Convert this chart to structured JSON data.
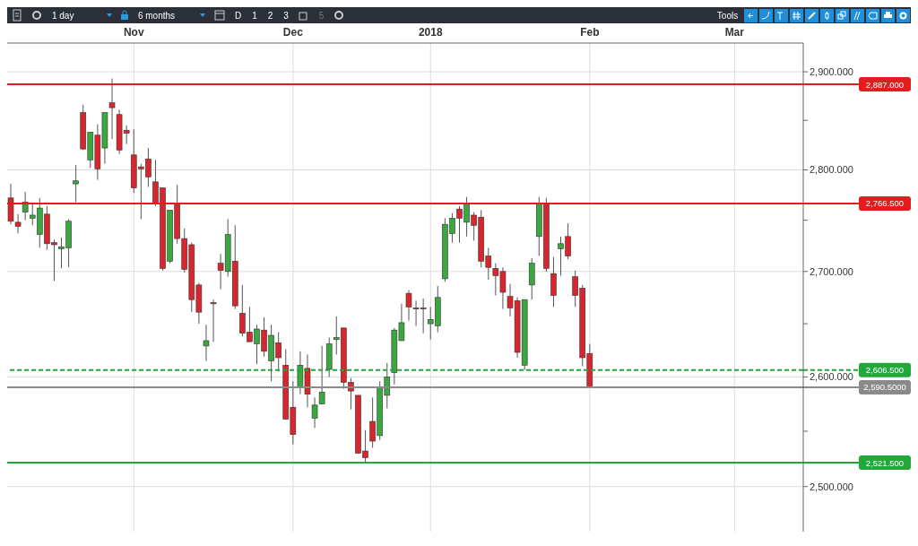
{
  "chart_data": {
    "type": "candlestick",
    "categories": [
      null,
      null,
      null,
      null,
      null,
      null,
      null,
      null,
      null,
      null,
      null,
      null,
      null,
      null,
      null,
      null,
      null,
      "Nov",
      null,
      null,
      null,
      null,
      null,
      null,
      null,
      null,
      null,
      null,
      null,
      null,
      null,
      null,
      null,
      null,
      null,
      null,
      null,
      null,
      null,
      "Dec",
      null,
      null,
      null,
      null,
      null,
      null,
      null,
      null,
      null,
      null,
      null,
      null,
      null,
      null,
      null,
      null,
      null,
      null,
      "2018",
      null,
      null,
      null,
      null,
      null,
      null,
      null,
      null,
      null,
      null,
      null,
      null,
      null,
      null,
      null,
      null,
      null,
      null,
      null,
      null,
      null,
      "Feb",
      null,
      null,
      null,
      null,
      null,
      null,
      null,
      null,
      null,
      null,
      null,
      null,
      null,
      null,
      null,
      null,
      null,
      null,
      null,
      "Mar",
      null,
      null,
      null,
      null,
      null,
      null,
      null,
      null,
      null
    ],
    "ohlc": [
      [
        2772,
        2786,
        2746,
        2749
      ],
      [
        2748,
        2756,
        2737,
        2744
      ],
      [
        2758,
        2778,
        2750,
        2768
      ],
      [
        2752,
        2767,
        2745,
        2755
      ],
      [
        2736,
        2772,
        2723,
        2762
      ],
      [
        2756,
        2764,
        2721,
        2727
      ],
      [
        2728,
        2731,
        2691,
        2726
      ],
      [
        2722,
        2733,
        2703,
        2724
      ],
      [
        2723,
        2751,
        2704,
        2749
      ],
      [
        2786,
        2805,
        2768,
        2789
      ],
      [
        2858,
        2866,
        2820,
        2821
      ],
      [
        2810,
        2838,
        2802,
        2838
      ],
      [
        2835,
        2846,
        2790,
        2801
      ],
      [
        2822,
        2858,
        2806,
        2858
      ],
      [
        2868,
        2893,
        2831,
        2863
      ],
      [
        2856,
        2861,
        2816,
        2820
      ],
      [
        2840,
        2845,
        2826,
        2837
      ],
      [
        2815,
        2841,
        2777,
        2782
      ],
      [
        2803,
        2806,
        2751,
        2801
      ],
      [
        2811,
        2822,
        2783,
        2793
      ],
      [
        2788,
        2810,
        2764,
        2767
      ],
      [
        2782,
        2782,
        2701,
        2703
      ],
      [
        2710,
        2760,
        2708,
        2760
      ],
      [
        2767,
        2785,
        2727,
        2732
      ],
      [
        2732,
        2742,
        2699,
        2702
      ],
      [
        2726,
        2728,
        2661,
        2673
      ],
      [
        2687,
        2689,
        2650,
        2661
      ],
      [
        2629,
        2649,
        2615,
        2634
      ],
      [
        2670,
        2673,
        2633,
        2669
      ],
      [
        2708,
        2717,
        2683,
        2701
      ],
      [
        2700,
        2751,
        2695,
        2736
      ],
      [
        2710,
        2745,
        2664,
        2667
      ],
      [
        2660,
        2687,
        2638,
        2641
      ],
      [
        2642,
        2666,
        2633,
        2633
      ],
      [
        2631,
        2649,
        2612,
        2645
      ],
      [
        2644,
        2656,
        2619,
        2624
      ],
      [
        2615,
        2649,
        2596,
        2639
      ],
      [
        2632,
        2642,
        2605,
        2618
      ],
      [
        2611,
        2626,
        2561,
        2561
      ],
      [
        2572,
        2596,
        2538,
        2547
      ],
      [
        2590,
        2624,
        2584,
        2611
      ],
      [
        2608,
        2621,
        2572,
        2584
      ],
      [
        2562,
        2581,
        2553,
        2574
      ],
      [
        2575,
        2629,
        2575,
        2586
      ],
      [
        2607,
        2637,
        2600,
        2631
      ],
      [
        2635,
        2657,
        2621,
        2637
      ],
      [
        2646,
        2646,
        2589,
        2595
      ],
      [
        2595,
        2599,
        2570,
        2587
      ],
      [
        2583,
        2583,
        2530,
        2530
      ],
      [
        2532,
        2551,
        2521.5,
        2526
      ],
      [
        2559,
        2581,
        2535,
        2541
      ],
      [
        2546,
        2596,
        2542,
        2591
      ],
      [
        2583,
        2613,
        2571,
        2600
      ],
      [
        2604,
        2646,
        2593,
        2644
      ],
      [
        2634,
        2669,
        2634,
        2651
      ],
      [
        2679,
        2682,
        2653,
        2666
      ],
      [
        2665,
        2672,
        2648,
        2664
      ],
      [
        2665,
        2674,
        2641,
        2664
      ],
      [
        2650,
        2666,
        2635,
        2654
      ],
      [
        2648,
        2686,
        2642,
        2675
      ],
      [
        2693,
        2752,
        2690,
        2746
      ],
      [
        2737,
        2757,
        2728,
        2752
      ],
      [
        2761,
        2764,
        2728,
        2752
      ],
      [
        2748,
        2773,
        2734,
        2766
      ],
      [
        2755,
        2758,
        2730,
        2745
      ],
      [
        2753,
        2760,
        2704,
        2710
      ],
      [
        2715,
        2723,
        2692,
        2704
      ],
      [
        2703,
        2708,
        2677,
        2696
      ],
      [
        2700,
        2704,
        2664,
        2680
      ],
      [
        2676,
        2688,
        2657,
        2665
      ],
      [
        2672,
        2675,
        2618,
        2623
      ],
      [
        2611,
        2673,
        2606.5,
        2673
      ],
      [
        2687,
        2713,
        2673,
        2708
      ],
      [
        2734,
        2773,
        2715,
        2766
      ],
      [
        2766,
        2772,
        2700,
        2703
      ],
      [
        2698,
        2714,
        2666,
        2677
      ],
      [
        2722,
        2734,
        2696,
        2727
      ],
      [
        2734,
        2747,
        2712,
        2715
      ],
      [
        2695,
        2701,
        2666,
        2677
      ],
      [
        2684,
        2687,
        2610,
        2618
      ],
      [
        2622,
        2631,
        2590.5,
        2590.5
      ],
      null,
      null,
      null,
      null,
      null,
      null,
      null,
      null,
      null,
      null,
      null,
      null,
      null,
      null,
      null,
      null,
      null,
      null,
      null,
      null,
      null,
      null,
      null,
      null,
      null,
      null,
      null,
      null,
      null
    ],
    "colors": [
      "#d7262d",
      "#d7262d",
      "#3aa83f",
      "#3aa83f",
      "#3aa83f",
      "#d7262d",
      "#d7262d",
      "#3aa83f",
      "#3aa83f",
      "#3aa83f",
      "#d7262d",
      "#3aa83f",
      "#d7262d",
      "#3aa83f",
      "#d7262d",
      "#d7262d",
      "#d7262d",
      "#d7262d",
      "#d7262d",
      "#d7262d",
      "#d7262d",
      "#d7262d",
      "#3aa83f",
      "#d7262d",
      "#d7262d",
      "#d7262d",
      "#d7262d",
      "#3aa83f",
      "#d7262d",
      "#d7262d",
      "#3aa83f",
      "#d7262d",
      "#d7262d",
      "#d7262d",
      "#3aa83f",
      "#d7262d",
      "#3aa83f",
      "#d7262d",
      "#d7262d",
      "#d7262d",
      "#3aa83f",
      "#d7262d",
      "#3aa83f",
      "#3aa83f",
      "#3aa83f",
      "#3aa83f",
      "#d7262d",
      "#d7262d",
      "#d7262d",
      "#d7262d",
      "#d7262d",
      "#3aa83f",
      "#3aa83f",
      "#3aa83f",
      "#3aa83f",
      "#d7262d",
      "#d7262d",
      "#d7262d",
      "#3aa83f",
      "#3aa83f",
      "#3aa83f",
      "#3aa83f",
      "#d7262d",
      "#3aa83f",
      "#d7262d",
      "#d7262d",
      "#d7262d",
      "#d7262d",
      "#d7262d",
      "#d7262d",
      "#d7262d",
      "#3aa83f",
      "#3aa83f",
      "#3aa83f",
      "#d7262d",
      "#d7262d",
      "#3aa83f",
      "#d7262d",
      "#d7262d",
      "#d7262d",
      "#d7262d",
      null,
      null,
      null,
      null,
      null,
      null,
      null,
      null,
      null,
      null,
      null,
      null,
      null,
      null,
      null,
      null,
      null,
      null,
      null,
      null,
      null,
      null,
      null,
      null,
      null,
      null,
      null,
      null,
      null
    ],
    "ylim": [
      2460,
      2930
    ],
    "yticks": [
      {
        "value": 2500,
        "label": "2,500.000"
      },
      {
        "value": 2550,
        "label": null
      },
      {
        "value": 2600,
        "label": "2,600.000"
      },
      {
        "value": 2650,
        "label": null
      },
      {
        "value": 2700,
        "label": "2,700.000"
      },
      {
        "value": 2750,
        "label": null
      },
      {
        "value": 2800,
        "label": "2,800.000"
      },
      {
        "value": 2850,
        "label": null
      },
      {
        "value": 2900,
        "label": "2,900.000"
      }
    ],
    "log": "y",
    "grid": true,
    "legend": false,
    "ref_lines": [
      {
        "axis": "y",
        "value": 2887,
        "label": "2,887.000",
        "color": "#e01e1e",
        "line_style": "solid"
      },
      {
        "axis": "y",
        "value": 2766.5,
        "label": "2,766.500",
        "color": "#e01e1e",
        "line_style": "solid"
      },
      {
        "axis": "y",
        "value": 2606.5,
        "label": "2,606.500",
        "color": "#22a83a",
        "line_style": "dashed"
      },
      {
        "axis": "y",
        "value": 2590.5,
        "label": "2,590.5000",
        "color": "#8a8a8a",
        "line_style": "solid"
      },
      {
        "axis": "y",
        "value": 2521.5,
        "label": "2,521.500",
        "color": "#22a83a",
        "line_style": "solid"
      }
    ],
    "annotations": [
      "1 day",
      "6 months",
      "D",
      "1",
      "2",
      "3",
      "5",
      "Tools"
    ]
  }
}
